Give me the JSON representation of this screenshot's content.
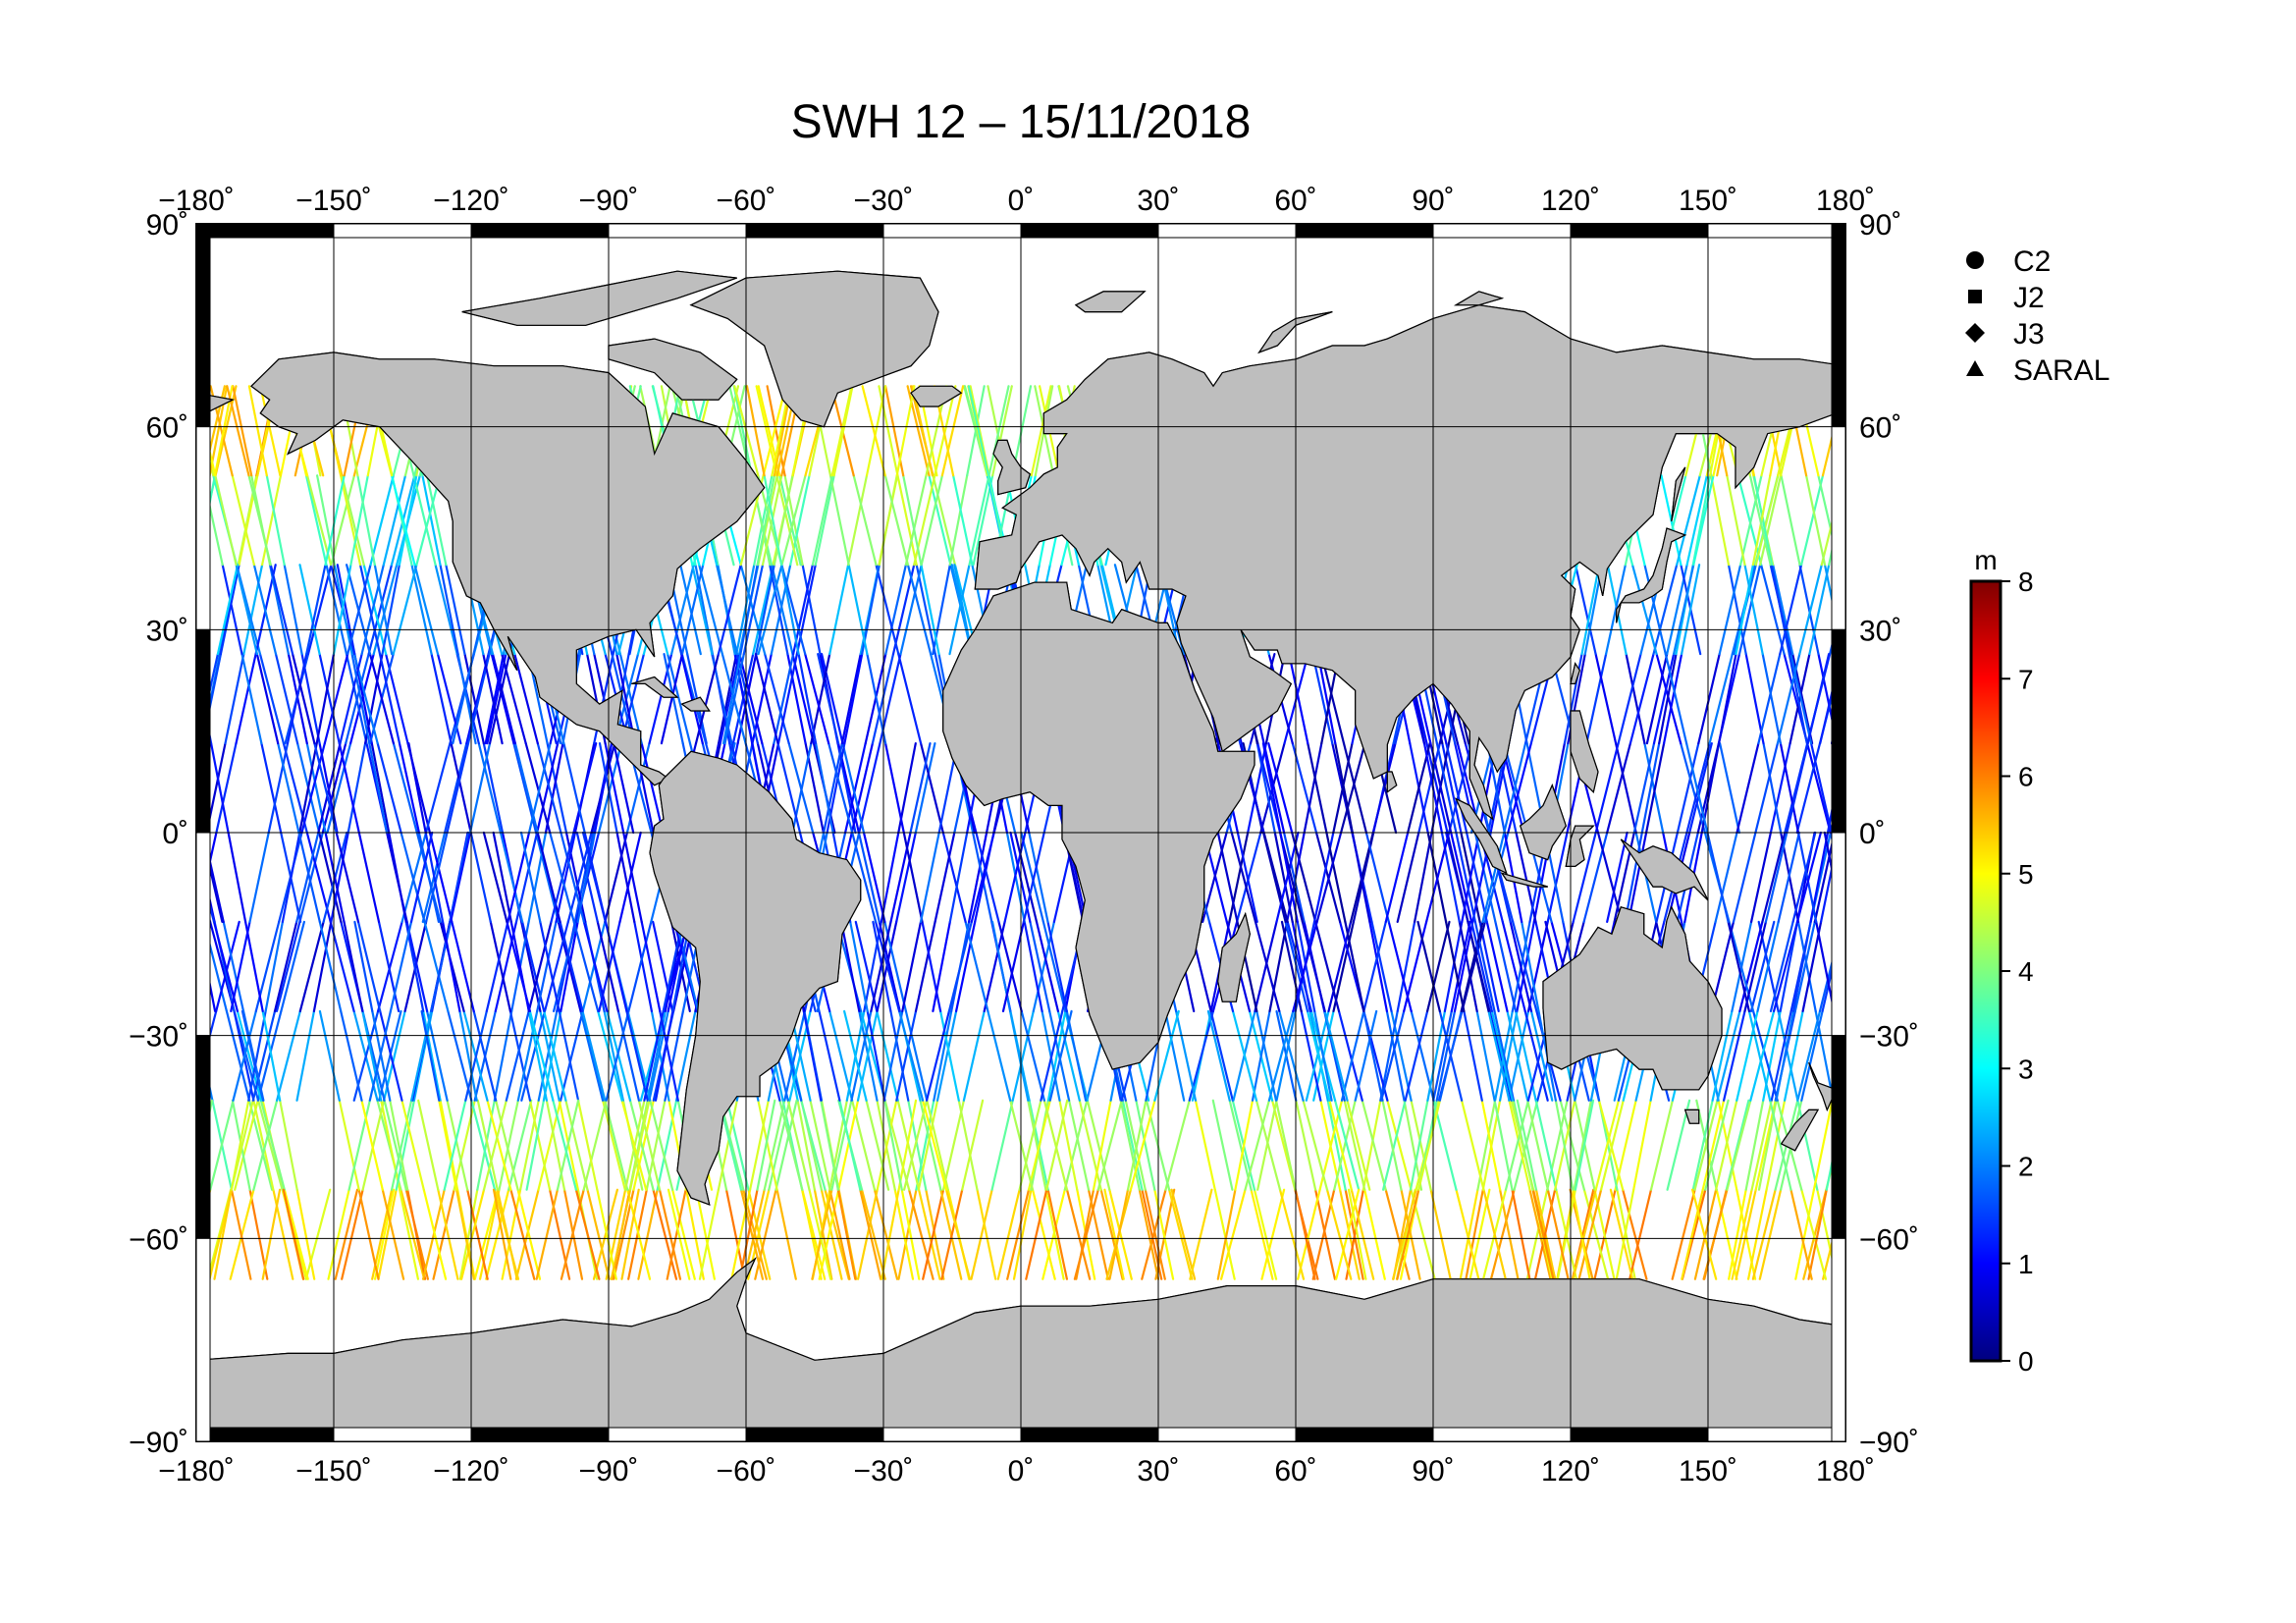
{
  "title": "SWH 12 – 15/11/2018",
  "map": {
    "projection": "equirectangular",
    "lon_range": [
      -180,
      180
    ],
    "lat_range": [
      -90,
      90
    ],
    "land_color": "#bebebe",
    "ocean_color": "#ffffff",
    "grid_color": "#000000",
    "lon_ticks": [
      {
        "value": -180,
        "label": "−180˚"
      },
      {
        "value": -150,
        "label": "−150˚"
      },
      {
        "value": -120,
        "label": "−120˚"
      },
      {
        "value": -90,
        "label": "−90˚"
      },
      {
        "value": -60,
        "label": "−60˚"
      },
      {
        "value": -30,
        "label": "−30˚"
      },
      {
        "value": 0,
        "label": "0˚"
      },
      {
        "value": 30,
        "label": "30˚"
      },
      {
        "value": 60,
        "label": "60˚"
      },
      {
        "value": 90,
        "label": "90˚"
      },
      {
        "value": 120,
        "label": "120˚"
      },
      {
        "value": 150,
        "label": "150˚"
      },
      {
        "value": 180,
        "label": "180˚"
      }
    ],
    "lat_ticks": [
      {
        "value": 90,
        "label": "90˚"
      },
      {
        "value": 60,
        "label": "60˚"
      },
      {
        "value": 30,
        "label": "30˚"
      },
      {
        "value": 0,
        "label": "0˚"
      },
      {
        "value": -30,
        "label": "−30˚"
      },
      {
        "value": -60,
        "label": "−60˚"
      },
      {
        "value": -90,
        "label": "−90˚"
      }
    ]
  },
  "legend": {
    "items": [
      {
        "label": "C2",
        "symbol": "circle"
      },
      {
        "label": "J2",
        "symbol": "square"
      },
      {
        "label": "J3",
        "symbol": "diamond"
      },
      {
        "label": "SARAL",
        "symbol": "triangle"
      }
    ]
  },
  "colorbar": {
    "unit": "m",
    "range": [
      0,
      8
    ],
    "ticks": [
      {
        "value": 8,
        "label": "8"
      },
      {
        "value": 7,
        "label": "7"
      },
      {
        "value": 6,
        "label": "6"
      },
      {
        "value": 5,
        "label": "5"
      },
      {
        "value": 4,
        "label": "4"
      },
      {
        "value": 3,
        "label": "3"
      },
      {
        "value": 2,
        "label": "2"
      },
      {
        "value": 1,
        "label": "1"
      },
      {
        "value": 0,
        "label": "0"
      }
    ],
    "stops": [
      "#00007f",
      "#0000ff",
      "#007fff",
      "#00ffff",
      "#7fff7f",
      "#ffff00",
      "#ff7f00",
      "#ff0000",
      "#7f0000"
    ]
  }
}
